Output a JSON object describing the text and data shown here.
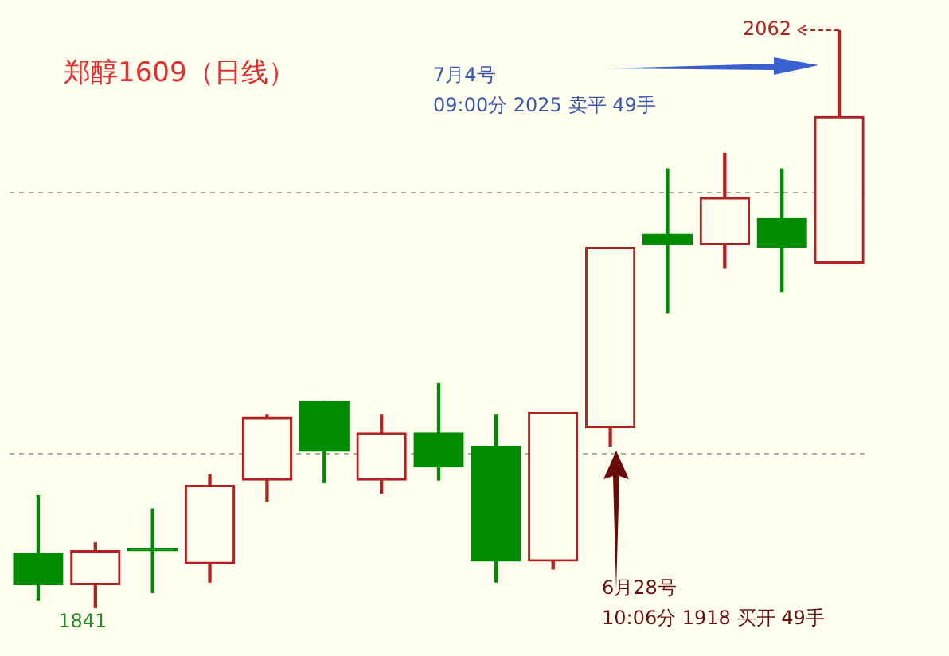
{
  "chart_data": {
    "type": "candlestick",
    "title": "郑醇1609（日线）",
    "categories": [
      null,
      null,
      null,
      null,
      null,
      null,
      null,
      null,
      null,
      null,
      null,
      null,
      null,
      null,
      null
    ],
    "ohlc": [
      [
        1862,
        1884,
        1844,
        1850
      ],
      [
        1850,
        1866,
        1841,
        1863
      ],
      [
        1864,
        1879,
        1847,
        1863
      ],
      [
        1858,
        1892,
        1851,
        1888
      ],
      [
        1890,
        1915,
        1882,
        1914
      ],
      [
        1920,
        1920,
        1889,
        1901
      ],
      [
        1890,
        1915,
        1885,
        1908
      ],
      [
        1908,
        1927,
        1890,
        1895
      ],
      [
        1903,
        1915,
        1851,
        1859
      ],
      [
        1859,
        1916,
        1856,
        1916
      ],
      [
        1910,
        1979,
        1903,
        1979
      ],
      [
        1984,
        2009,
        1954,
        1980
      ],
      [
        1980,
        2015,
        1971,
        1998
      ],
      [
        1990,
        2009,
        1962,
        1979
      ],
      [
        1973,
        2062,
        1973,
        2029
      ]
    ],
    "colors": [
      "#008c00",
      "#b22222",
      "#008c00",
      "#b22222",
      "#b22222",
      "#008c00",
      "#b22222",
      "#008c00",
      "#008c00",
      "#b22222",
      "#b22222",
      "#008c00",
      "#b22222",
      "#008c00",
      "#b22222"
    ],
    "yticks": [
      {
        "value": 1900,
        "label": null
      },
      {
        "value": 2000,
        "label": null
      }
    ],
    "grid": "y",
    "annotations": [
      "2062",
      "1841",
      "7月4号\n09:00分 2025 卖平 49手",
      "6月28号\n10:06分 1918 买开 49手"
    ]
  }
}
